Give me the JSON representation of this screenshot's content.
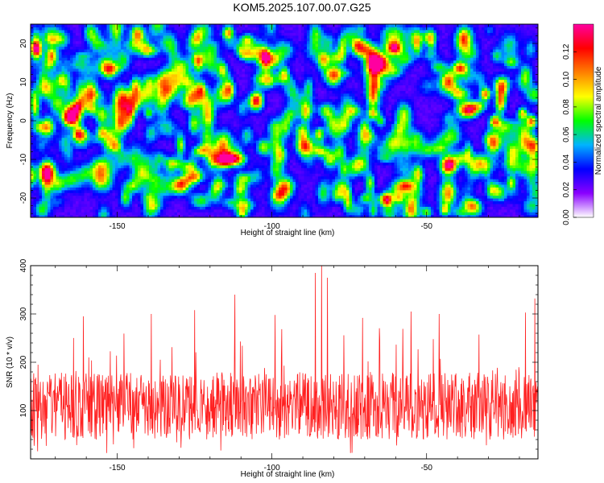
{
  "chart_data": [
    {
      "type": "heatmap",
      "title": "KOM5.2025.107.00.07.G25",
      "xlabel": "Height of straight line (km)",
      "ylabel": "Frequency (Hz)",
      "xlim": [
        -178,
        -14
      ],
      "ylim": [
        -25,
        25
      ],
      "xticks": [
        -150,
        -100,
        -50
      ],
      "yticks": [
        -20,
        -10,
        0,
        10,
        20
      ],
      "colorbar": {
        "label": "Normalized spectral amplitude",
        "range": [
          0,
          0.14
        ],
        "ticks": [
          "0.00",
          "0.02",
          "0.04",
          "0.06",
          "0.08",
          "0.10",
          "0.12"
        ],
        "colors": [
          "#ffffff",
          "#8a00ff",
          "#0000ff",
          "#00b4ff",
          "#00ff00",
          "#ffff00",
          "#ff8000",
          "#ff0000",
          "#ff00a0"
        ]
      },
      "notable_peaks": [
        {
          "x": -31,
          "y": 7,
          "value": 0.12
        },
        {
          "x": -28,
          "y": 0,
          "value": 0.11
        },
        {
          "x": -16,
          "y": 0,
          "value": 0.11
        },
        {
          "x": -19,
          "y": 2,
          "value": 0.1
        },
        {
          "x": -155,
          "y": -3,
          "value": 0.09
        },
        {
          "x": -102,
          "y": 17,
          "value": 0.08
        }
      ]
    },
    {
      "type": "line",
      "xlabel": "Height of straight line (km)",
      "ylabel": "SNR (10 * v/v)",
      "xlim": [
        -178,
        -14
      ],
      "ylim": [
        0,
        400
      ],
      "xticks": [
        -150,
        -100,
        -50
      ],
      "yticks": [
        100,
        200,
        300,
        400
      ],
      "color": "#ff2020",
      "baseline_mean": 110,
      "samples": 1300,
      "peaks": [
        {
          "x": -84,
          "y": 400
        },
        {
          "x": -86,
          "y": 385
        },
        {
          "x": -82,
          "y": 375
        },
        {
          "x": -112,
          "y": 340
        },
        {
          "x": -15,
          "y": 332
        },
        {
          "x": -125,
          "y": 308
        },
        {
          "x": -55,
          "y": 305
        },
        {
          "x": -18,
          "y": 303
        },
        {
          "x": -139,
          "y": 300
        },
        {
          "x": -46,
          "y": 300
        },
        {
          "x": -99,
          "y": 298
        },
        {
          "x": -161,
          "y": 295
        }
      ]
    }
  ]
}
